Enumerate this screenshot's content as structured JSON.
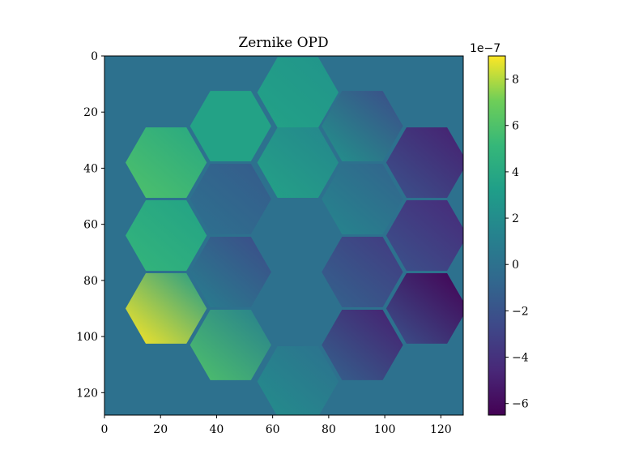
{
  "chart_data": {
    "type": "heatmap",
    "title": "Zernike OPD",
    "xlabel": "",
    "ylabel": "",
    "grid": false,
    "image_size": [
      128,
      128
    ],
    "xlim": [
      0,
      128
    ],
    "ylim": [
      128,
      0
    ],
    "x_ticks": [
      0,
      20,
      40,
      60,
      80,
      100,
      120
    ],
    "y_ticks": [
      0,
      20,
      40,
      60,
      80,
      100,
      120
    ],
    "x_tick_labels": [
      "0",
      "20",
      "40",
      "60",
      "80",
      "100",
      "120"
    ],
    "y_tick_labels": [
      "0",
      "20",
      "40",
      "60",
      "80",
      "100",
      "120"
    ],
    "background_value": 0,
    "colormap": "viridis",
    "colorbar": {
      "range": [
        -6.5e-07,
        9e-07
      ],
      "ticks": [
        8,
        6,
        4,
        2,
        0,
        -2,
        -4,
        -6
      ],
      "tick_labels": [
        "8",
        "6",
        "4",
        "2",
        "0",
        "−2",
        "−4",
        "−6"
      ],
      "offset_text": "1e−7",
      "scale": 1e-07
    },
    "segments": [
      {
        "center": [
          69,
          13
        ],
        "value_range": [
          2.5e-07,
          3.5e-07
        ]
      },
      {
        "center": [
          45,
          25
        ],
        "value_range": [
          3.5e-07,
          3.5e-07
        ]
      },
      {
        "center": [
          92,
          25
        ],
        "value_range": [
          -2.5e-07,
          2.5e-07
        ]
      },
      {
        "center": [
          69,
          38
        ],
        "value_range": [
          1.5e-07,
          3.5e-07
        ]
      },
      {
        "center": [
          22,
          38
        ],
        "value_range": [
          4e-07,
          6e-07
        ]
      },
      {
        "center": [
          115,
          38
        ],
        "value_range": [
          -5e-07,
          -2e-07
        ]
      },
      {
        "center": [
          45,
          51
        ],
        "value_range": [
          -1.5e-07,
          0.0
        ]
      },
      {
        "center": [
          92,
          51
        ],
        "value_range": [
          -1e-07,
          1.5e-07
        ]
      },
      {
        "center": [
          22,
          64
        ],
        "value_range": [
          3.5e-07,
          5e-07
        ]
      },
      {
        "center": [
          115,
          64
        ],
        "value_range": [
          -4.5e-07,
          -2e-07
        ]
      },
      {
        "center": [
          45,
          77
        ],
        "value_range": [
          -2.5e-07,
          1e-07
        ]
      },
      {
        "center": [
          92,
          77
        ],
        "value_range": [
          -3.5e-07,
          -1e-07
        ]
      },
      {
        "center": [
          22,
          90
        ],
        "value_range": [
          3e-07,
          9e-07
        ]
      },
      {
        "center": [
          115,
          90
        ],
        "value_range": [
          -6.5e-07,
          -2e-07
        ]
      },
      {
        "center": [
          45,
          103
        ],
        "value_range": [
          1e-07,
          6e-07
        ]
      },
      {
        "center": [
          92,
          103
        ],
        "value_range": [
          -5e-07,
          -1e-07
        ]
      },
      {
        "center": [
          69,
          116
        ],
        "value_range": [
          0.0,
          2e-07
        ]
      }
    ]
  }
}
